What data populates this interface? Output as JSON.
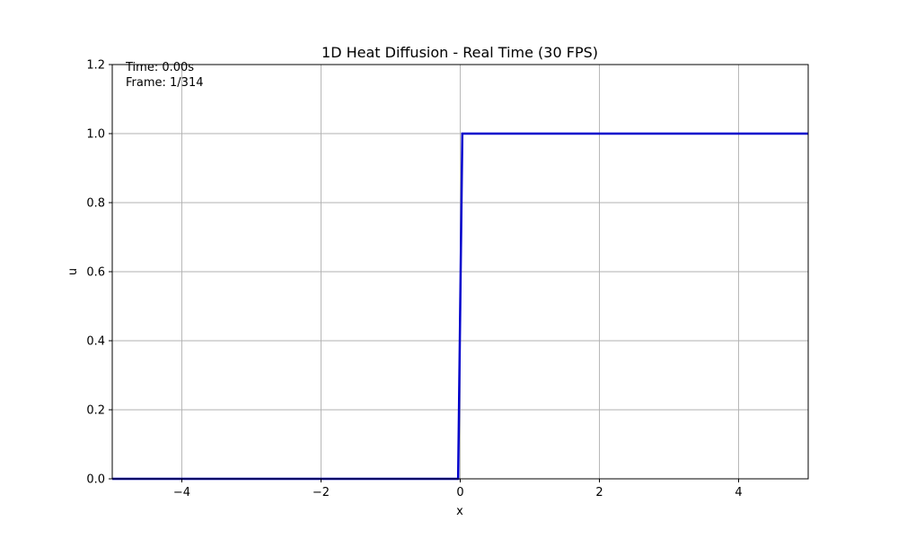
{
  "chart_data": {
    "type": "line",
    "title": "1D Heat Diffusion - Real Time (30 FPS)",
    "xlabel": "x",
    "ylabel": "u",
    "xlim": [
      -5,
      5
    ],
    "ylim": [
      0,
      1.2
    ],
    "x_ticks": [
      -4,
      -2,
      0,
      2,
      4
    ],
    "x_tick_labels": [
      "−4",
      "−2",
      "0",
      "2",
      "4"
    ],
    "y_ticks": [
      0,
      0.2,
      0.4,
      0.6,
      0.8,
      1.0,
      1.2
    ],
    "y_tick_labels": [
      "0.0",
      "0.2",
      "0.4",
      "0.6",
      "0.8",
      "1.0",
      "1.2"
    ],
    "grid": true,
    "annotations": {
      "time": "Time: 0.00s",
      "frame": "Frame: 1/314"
    },
    "series": [
      {
        "color": "#0000cc",
        "x": [
          -5,
          -0.03,
          0.03,
          5
        ],
        "y": [
          0,
          0,
          1,
          1
        ]
      }
    ]
  }
}
